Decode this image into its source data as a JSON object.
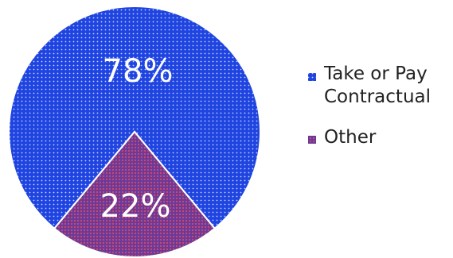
{
  "chart_data": {
    "type": "pie",
    "title": "",
    "slices": [
      {
        "name": "Take or Pay Contractual",
        "legend_lines": [
          "Take or Pay",
          "Contractual"
        ],
        "value": 78,
        "label": "78%",
        "color": "#1f44e0"
      },
      {
        "name": "Other",
        "legend_lines": [
          "Other"
        ],
        "value": 22,
        "label": "22%",
        "color": "#6a3a9a"
      }
    ],
    "legend_position": "right"
  }
}
